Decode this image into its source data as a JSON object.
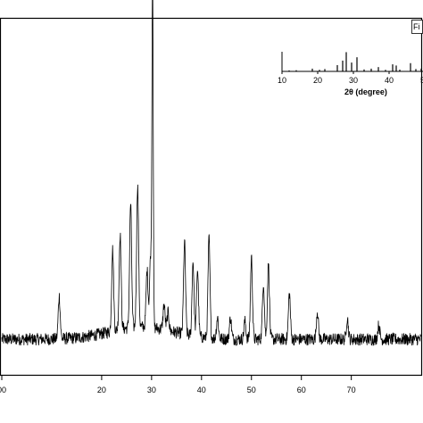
{
  "chart_data": [
    {
      "type": "line",
      "title": "",
      "xlabel": "",
      "ylabel": "",
      "xlim": [
        0,
        84
      ],
      "x_ticks": [
        0,
        20,
        30,
        40,
        50,
        60,
        70
      ],
      "x_tick_labels": [
        "00",
        "20",
        "30",
        "40",
        "50",
        "60",
        "70"
      ],
      "grid": false,
      "legend": {
        "placement": "top-right",
        "text": "Fi"
      },
      "series": [
        {
          "baseline": 0.1,
          "peaks": [
            {
              "x": 11.5,
              "height": 0.12
            },
            {
              "x": 22.2,
              "height": 0.23
            },
            {
              "x": 23.7,
              "height": 0.27
            },
            {
              "x": 25.8,
              "height": 0.35
            },
            {
              "x": 27.2,
              "height": 0.4
            },
            {
              "x": 29.1,
              "height": 0.16
            },
            {
              "x": 29.8,
              "height": 0.2
            },
            {
              "x": 30.2,
              "height": 0.98
            },
            {
              "x": 32.5,
              "height": 0.07
            },
            {
              "x": 33.3,
              "height": 0.05
            },
            {
              "x": 36.6,
              "height": 0.26
            },
            {
              "x": 38.3,
              "height": 0.21
            },
            {
              "x": 39.2,
              "height": 0.19
            },
            {
              "x": 41.5,
              "height": 0.28
            },
            {
              "x": 43.2,
              "height": 0.06
            },
            {
              "x": 45.8,
              "height": 0.06
            },
            {
              "x": 48.7,
              "height": 0.05
            },
            {
              "x": 50.0,
              "height": 0.23
            },
            {
              "x": 52.4,
              "height": 0.16
            },
            {
              "x": 53.4,
              "height": 0.21
            },
            {
              "x": 57.6,
              "height": 0.13
            },
            {
              "x": 63.2,
              "height": 0.08
            },
            {
              "x": 69.2,
              "height": 0.06
            },
            {
              "x": 75.5,
              "height": 0.04
            }
          ]
        }
      ]
    },
    {
      "type": "bar",
      "title": "",
      "xlabel": "2θ (degree)",
      "ylabel": "",
      "xlim": [
        10,
        56
      ],
      "x_ticks": [
        10,
        20,
        30,
        40,
        50
      ],
      "x_tick_labels": [
        "10",
        "20",
        "30",
        "40",
        "50"
      ],
      "x": [
        12,
        14,
        18.5,
        20.5,
        22,
        25.5,
        27,
        28,
        29.5,
        31,
        33,
        35,
        37,
        39,
        41,
        42,
        43,
        46,
        47.5,
        49,
        50.5,
        52,
        54,
        55
      ],
      "values": [
        0.05,
        0.06,
        0.14,
        0.08,
        0.12,
        0.32,
        0.55,
        0.98,
        0.45,
        0.72,
        0.1,
        0.14,
        0.22,
        0.08,
        0.36,
        0.3,
        0.09,
        0.42,
        0.12,
        0.14,
        0.18,
        0.26,
        0.16,
        0.22
      ]
    }
  ]
}
